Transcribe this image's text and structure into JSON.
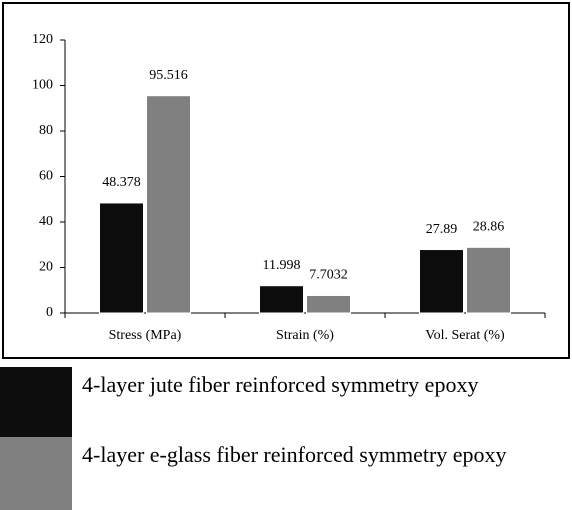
{
  "chart_data": {
    "type": "bar",
    "categories": [
      "Stress (MPa)",
      "Strain (%)",
      "Vol. Serat (%)"
    ],
    "series": [
      {
        "name": "4-layer jute fiber reinforced symmetry epoxy",
        "color": "#0d0d0d",
        "values": [
          48.378,
          11.998,
          27.89
        ]
      },
      {
        "name": "4-layer e-glass fiber reinforced symmetry epoxy",
        "color": "#808080",
        "values": [
          95.516,
          7.7032,
          28.86
        ]
      }
    ],
    "ylim": [
      0,
      120
    ],
    "yticks": [
      0,
      20,
      40,
      60,
      80,
      100,
      120
    ],
    "grid": false
  }
}
